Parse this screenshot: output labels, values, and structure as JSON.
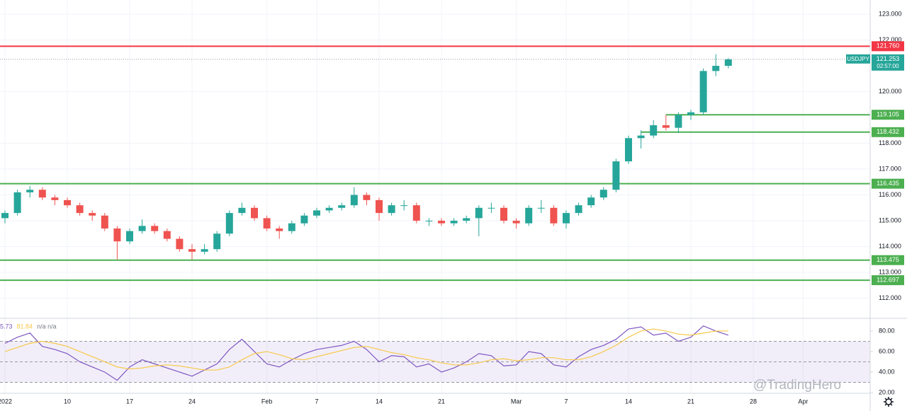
{
  "chart_data": {
    "type": "candlestick",
    "symbol": "USDJPY",
    "last_price": {
      "value": 121.253,
      "label": "121.253"
    },
    "countdown": "02:57:00",
    "categories": [
      "2022",
      null,
      null,
      null,
      null,
      "10",
      null,
      null,
      null,
      null,
      "17",
      null,
      null,
      null,
      null,
      "24",
      null,
      null,
      null,
      null,
      null,
      "Feb",
      null,
      null,
      null,
      "7",
      null,
      null,
      null,
      null,
      "14",
      null,
      null,
      null,
      null,
      "21",
      null,
      null,
      null,
      null,
      null,
      "Mar",
      null,
      null,
      null,
      "7",
      null,
      null,
      null,
      null,
      "14",
      null,
      null,
      null,
      null,
      "21",
      null,
      null,
      null,
      null,
      "28",
      null,
      null,
      null,
      "Apr",
      null,
      null
    ],
    "open": [
      115.1,
      115.3,
      116.1,
      116.2,
      115.9,
      115.8,
      115.6,
      115.3,
      115.2,
      114.7,
      114.2,
      114.6,
      114.8,
      114.6,
      114.3,
      113.9,
      113.8,
      113.9,
      114.5,
      115.3,
      115.5,
      115.1,
      114.7,
      114.6,
      114.9,
      115.2,
      115.4,
      115.5,
      115.6,
      116.0,
      115.8,
      115.3,
      115.6,
      115.6,
      115.0,
      115.0,
      114.9,
      115.0,
      115.1,
      115.5,
      115.5,
      115.0,
      114.9,
      115.5,
      115.5,
      114.9,
      115.3,
      115.6,
      115.9,
      116.2,
      117.3,
      118.2,
      118.3,
      118.7,
      118.6,
      119.1,
      119.2,
      120.8,
      121.0,
      null,
      null,
      null,
      null,
      null,
      null,
      null,
      null
    ],
    "high": [
      115.4,
      116.2,
      116.35,
      116.3,
      116.0,
      115.9,
      115.7,
      115.4,
      115.3,
      114.8,
      114.7,
      115.05,
      114.9,
      114.7,
      114.4,
      114.1,
      114.1,
      114.6,
      115.4,
      115.7,
      115.6,
      115.2,
      114.8,
      115.0,
      115.3,
      115.5,
      115.6,
      115.7,
      116.3,
      116.1,
      115.9,
      115.7,
      115.8,
      115.7,
      115.1,
      115.1,
      115.1,
      115.2,
      115.6,
      115.7,
      115.6,
      115.1,
      115.6,
      115.8,
      115.6,
      115.4,
      115.7,
      116.0,
      116.3,
      117.4,
      118.3,
      118.5,
      118.9,
      119.1,
      119.2,
      119.3,
      120.9,
      121.45,
      121.3,
      null,
      null,
      null,
      null,
      null,
      null,
      null,
      null
    ],
    "low": [
      114.9,
      115.2,
      115.9,
      115.8,
      115.6,
      115.5,
      115.2,
      115.0,
      114.6,
      113.5,
      114.1,
      114.5,
      114.5,
      114.2,
      113.8,
      113.5,
      113.7,
      113.8,
      114.4,
      115.2,
      115.0,
      114.6,
      114.3,
      114.5,
      114.8,
      115.1,
      115.3,
      115.4,
      115.5,
      115.6,
      115.0,
      115.2,
      115.4,
      114.9,
      114.8,
      114.8,
      114.8,
      114.9,
      114.4,
      115.3,
      114.9,
      114.7,
      114.8,
      115.3,
      114.8,
      114.7,
      115.2,
      115.5,
      115.8,
      116.1,
      117.2,
      117.8,
      118.2,
      118.5,
      118.4,
      118.9,
      119.1,
      120.6,
      120.9,
      null,
      null,
      null,
      null,
      null,
      null,
      null,
      null
    ],
    "close": [
      115.3,
      116.1,
      116.2,
      115.9,
      115.8,
      115.6,
      115.3,
      115.2,
      114.7,
      114.2,
      114.6,
      114.8,
      114.6,
      114.3,
      113.9,
      113.8,
      113.9,
      114.5,
      115.3,
      115.5,
      115.1,
      114.7,
      114.6,
      114.9,
      115.2,
      115.4,
      115.5,
      115.6,
      116.0,
      115.8,
      115.3,
      115.6,
      115.6,
      115.0,
      115.0,
      114.9,
      115.0,
      115.1,
      115.5,
      115.5,
      115.0,
      114.9,
      115.5,
      115.5,
      114.9,
      115.3,
      115.6,
      115.9,
      116.2,
      117.3,
      118.2,
      118.3,
      118.7,
      118.6,
      119.1,
      119.2,
      120.8,
      121.0,
      121.25,
      null,
      null,
      null,
      null,
      null,
      null,
      null,
      null
    ],
    "up_color": "#26a69a",
    "down_color": "#ef5350",
    "grid": true,
    "ylim": [
      111.22,
      123.55
    ],
    "yticks": [
      {
        "value": 123,
        "label": "123.000"
      },
      {
        "value": 122,
        "label": "122.000"
      },
      {
        "value": 120,
        "label": "120.000"
      },
      {
        "value": 118,
        "label": "118.000"
      },
      {
        "value": 117,
        "label": "117.000"
      },
      {
        "value": 116,
        "label": "116.000"
      },
      {
        "value": 115,
        "label": "115.000"
      },
      {
        "value": 114,
        "label": "114.000"
      },
      {
        "value": 113,
        "label": "113.000"
      },
      {
        "value": 112,
        "label": "112.000"
      }
    ],
    "levels": [
      {
        "value": 121.76,
        "label": "121.760",
        "color": "#f23645"
      },
      {
        "value": 119.105,
        "label": "119.105",
        "color": "#4caf50",
        "start": 53
      },
      {
        "value": 118.432,
        "label": "118.432",
        "color": "#4caf50",
        "start": 51
      },
      {
        "value": 116.435,
        "label": "116.435",
        "color": "#4caf50"
      },
      {
        "value": 113.475,
        "label": "113.475",
        "color": "#4caf50"
      },
      {
        "value": 112.697,
        "label": "112.697",
        "color": "#4caf50"
      }
    ],
    "indicator": {
      "labels": [
        "5.73",
        "81.84",
        "n/a n/a"
      ],
      "ylim": [
        20,
        91
      ],
      "yticks": [
        {
          "value": 80,
          "label": "80.00"
        },
        {
          "value": 60,
          "label": "60.00"
        },
        {
          "value": 40,
          "label": "40.00"
        },
        {
          "value": 20,
          "label": "20.00"
        }
      ],
      "band": [
        30,
        70
      ],
      "midline": 50,
      "series": [
        {
          "color": "#7e57c2",
          "values": [
            68,
            74,
            78,
            65,
            62,
            58,
            50,
            45,
            40,
            32,
            45,
            52,
            48,
            44,
            40,
            36,
            42,
            48,
            62,
            72,
            60,
            48,
            45,
            52,
            58,
            62,
            64,
            66,
            70,
            62,
            50,
            56,
            55,
            45,
            48,
            40,
            44,
            50,
            58,
            56,
            46,
            47,
            60,
            58,
            47,
            45,
            55,
            62,
            66,
            72,
            82,
            84,
            76,
            78,
            70,
            74,
            85,
            80,
            76,
            null,
            null,
            null,
            null,
            null,
            null,
            null,
            null
          ]
        },
        {
          "color": "#f7c948",
          "values": [
            60,
            64,
            68,
            70,
            68,
            65,
            60,
            55,
            50,
            45,
            43,
            44,
            46,
            47,
            46,
            44,
            42,
            42,
            45,
            52,
            58,
            60,
            57,
            53,
            52,
            55,
            58,
            61,
            64,
            65,
            62,
            59,
            57,
            54,
            52,
            49,
            47,
            47,
            49,
            52,
            53,
            51,
            52,
            54,
            54,
            52,
            52,
            55,
            60,
            66,
            74,
            80,
            82,
            80,
            77,
            76,
            78,
            80,
            80,
            null,
            null,
            null,
            null,
            null,
            null,
            null,
            null
          ]
        }
      ]
    },
    "watermark": "@TradingHero"
  }
}
